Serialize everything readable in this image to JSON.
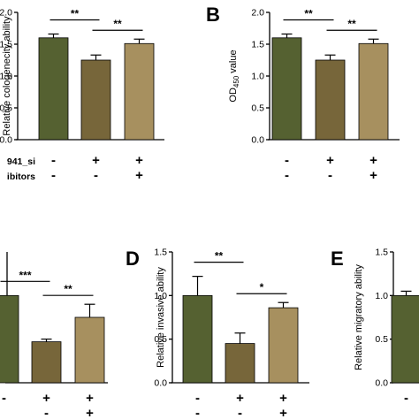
{
  "colors": {
    "bar1": "#556131",
    "bar2": "#77663A",
    "bar3": "#A7905F",
    "axis": "#000000"
  },
  "chart_data": [
    {
      "panel": "",
      "type": "bar",
      "ylabel": "Relative cologenecity ability",
      "ylim": [
        0,
        2.0
      ],
      "yticks": [
        "0.0",
        "0.5",
        "1.0",
        "1.5",
        "2.0"
      ],
      "categories": [
        "1",
        "2",
        "3"
      ],
      "values": [
        1.6,
        1.25,
        1.51
      ],
      "errors": [
        0.06,
        0.08,
        0.07
      ],
      "signs": [
        [
          "-",
          "+",
          "+"
        ],
        [
          "-",
          "-",
          "+"
        ]
      ],
      "row_labels": [
        "941_si",
        "ibitors"
      ],
      "significance": [
        {
          "from": 0,
          "to": 1,
          "label": "**"
        },
        {
          "from": 1,
          "to": 2,
          "label": "**"
        }
      ]
    },
    {
      "panel": "B",
      "type": "bar",
      "ylabel": "OD450 value",
      "ylabel_main": "OD",
      "ylabel_sub": "450",
      "ylabel_tail": " value",
      "ylim": [
        0,
        2.0
      ],
      "yticks": [
        "0.0",
        "0.5",
        "1.0",
        "1.5",
        "2.0"
      ],
      "categories": [
        "1",
        "2",
        "3"
      ],
      "values": [
        1.6,
        1.25,
        1.51
      ],
      "errors": [
        0.06,
        0.08,
        0.07
      ],
      "signs": [
        [
          "-",
          "+",
          "+"
        ],
        [
          "-",
          "-",
          "+"
        ]
      ],
      "significance": [
        {
          "from": 0,
          "to": 1,
          "label": "**"
        },
        {
          "from": 1,
          "to": 2,
          "label": "**"
        }
      ]
    },
    {
      "panel": "",
      "type": "bar",
      "ylabel": "",
      "ylim": [
        0,
        1.5
      ],
      "yticks": [],
      "categories": [
        "1",
        "2",
        "3"
      ],
      "values": [
        1.0,
        0.47,
        0.75
      ],
      "errors": [
        0.0,
        0.03,
        0.15
      ],
      "signs": [
        [
          "-",
          "+",
          "+"
        ],
        [
          "",
          "-",
          "+"
        ]
      ],
      "significance": [
        {
          "from": 0,
          "to": 1,
          "label": "***"
        },
        {
          "from": 1,
          "to": 2,
          "label": "**"
        }
      ]
    },
    {
      "panel": "D",
      "type": "bar",
      "ylabel": "Relative invasive ability",
      "ylim": [
        0,
        1.5
      ],
      "yticks": [
        "0.0",
        "0.5",
        "1.0",
        "1.5"
      ],
      "categories": [
        "1",
        "2",
        "3"
      ],
      "values": [
        1.0,
        0.45,
        0.86
      ],
      "errors": [
        0.22,
        0.12,
        0.06
      ],
      "signs": [
        [
          "-",
          "+",
          "+"
        ],
        [
          "-",
          "-",
          "+"
        ]
      ],
      "significance": [
        {
          "from": 0,
          "to": 1,
          "label": "**"
        },
        {
          "from": 1,
          "to": 2,
          "label": "*"
        }
      ]
    },
    {
      "panel": "E",
      "type": "bar",
      "ylabel": "Relative migratory ability",
      "ylim": [
        0,
        1.5
      ],
      "yticks": [
        "0.0",
        "0.5",
        "1.0",
        "1.5"
      ],
      "categories": [
        "1"
      ],
      "values": [
        1.0
      ],
      "errors": [
        0.05
      ],
      "signs": [
        [
          "-"
        ]
      ],
      "significance": []
    }
  ]
}
